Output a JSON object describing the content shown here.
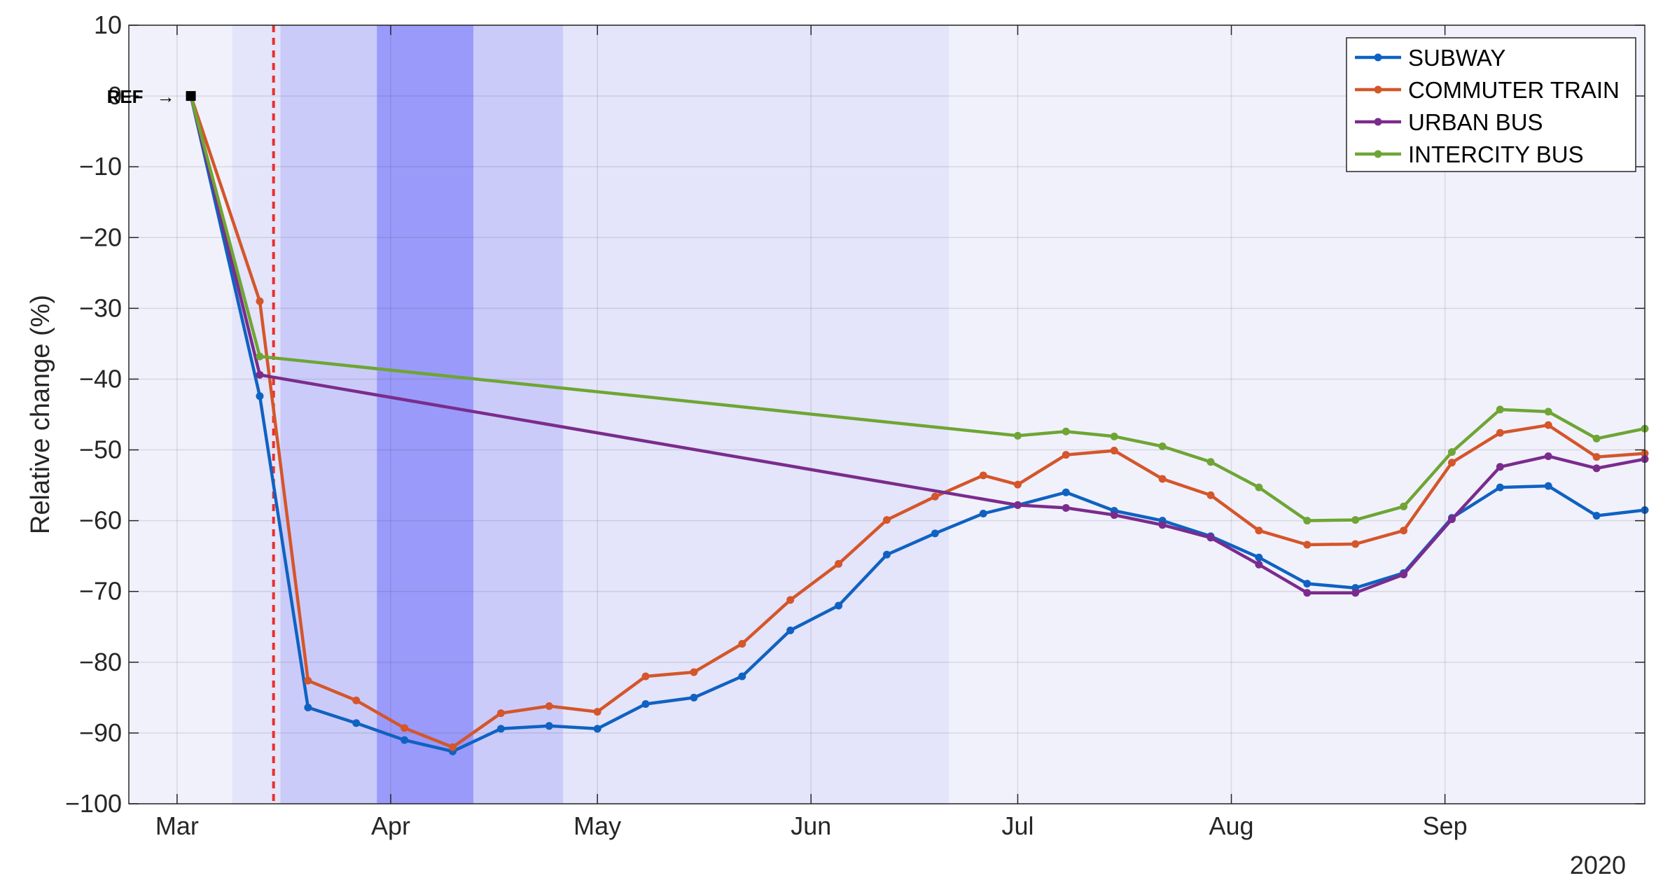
{
  "chart_data": {
    "type": "line",
    "xlabel": "",
    "ylabel": "Relative change (%)",
    "year_label": "2020",
    "ylim": [
      -100,
      10
    ],
    "xlim": [
      "2020-02-23",
      "2020-09-30"
    ],
    "yticks": [
      10,
      0,
      -10,
      -20,
      -30,
      -40,
      -50,
      -60,
      -70,
      -80,
      -90,
      -100
    ],
    "ytick_labels": [
      "10",
      "0",
      "−10",
      "−20",
      "−30",
      "−40",
      "−50",
      "−60",
      "−70",
      "−80",
      "−90",
      "−100"
    ],
    "xticks": [
      {
        "date": "2020-03-01",
        "label": "Mar"
      },
      {
        "date": "2020-04-01",
        "label": "Apr"
      },
      {
        "date": "2020-05-01",
        "label": "May"
      },
      {
        "date": "2020-06-01",
        "label": "Jun"
      },
      {
        "date": "2020-07-01",
        "label": "Jul"
      },
      {
        "date": "2020-08-01",
        "label": "Aug"
      },
      {
        "date": "2020-09-01",
        "label": "Sep"
      }
    ],
    "grid": true,
    "legend_position": "top-right",
    "reference": {
      "date": "2020-03-03",
      "value": 0,
      "label": "REF",
      "arrow": "→"
    },
    "event_line": {
      "date": "2020-03-15",
      "color": "#e8302e"
    },
    "shaded_periods": [
      {
        "start": "2020-03-09",
        "end": "2020-06-21",
        "color": "#e4e4fa"
      },
      {
        "start": "2020-03-16",
        "end": "2020-04-26",
        "color": "#cbcbfa"
      },
      {
        "start": "2020-03-30",
        "end": "2020-04-13",
        "color": "#9a9afa"
      }
    ],
    "series": [
      {
        "name": "SUBWAY",
        "color": "#0f62c1",
        "dates": [
          "2020-03-03",
          "2020-03-13",
          "2020-03-20",
          "2020-03-27",
          "2020-04-03",
          "2020-04-10",
          "2020-04-17",
          "2020-04-24",
          "2020-05-01",
          "2020-05-08",
          "2020-05-15",
          "2020-05-22",
          "2020-05-29",
          "2020-06-05",
          "2020-06-12",
          "2020-06-19",
          "2020-06-26",
          "2020-07-01",
          "2020-07-08",
          "2020-07-15",
          "2020-07-22",
          "2020-07-29",
          "2020-08-05",
          "2020-08-12",
          "2020-08-19",
          "2020-08-26",
          "2020-09-02",
          "2020-09-09",
          "2020-09-16",
          "2020-09-23",
          "2020-09-30"
        ],
        "values": [
          0,
          -42.4,
          -86.4,
          -88.6,
          -91,
          -92.6,
          -89.4,
          -89,
          -89.4,
          -85.9,
          -85,
          -82,
          -75.5,
          -72,
          -64.8,
          -61.8,
          -59,
          -57.8,
          -56,
          -58.6,
          -60,
          -62.2,
          -65.2,
          -68.9,
          -69.5,
          -67.4,
          -59.6,
          -55.3,
          -55.1,
          -59.3,
          -58.5
        ]
      },
      {
        "name": "COMMUTER TRAIN",
        "color": "#d4562a",
        "dates": [
          "2020-03-03",
          "2020-03-13",
          "2020-03-20",
          "2020-03-27",
          "2020-04-03",
          "2020-04-10",
          "2020-04-17",
          "2020-04-24",
          "2020-05-01",
          "2020-05-08",
          "2020-05-15",
          "2020-05-22",
          "2020-05-29",
          "2020-06-05",
          "2020-06-12",
          "2020-06-19",
          "2020-06-26",
          "2020-07-01",
          "2020-07-08",
          "2020-07-15",
          "2020-07-22",
          "2020-07-29",
          "2020-08-05",
          "2020-08-12",
          "2020-08-19",
          "2020-08-26",
          "2020-09-02",
          "2020-09-09",
          "2020-09-16",
          "2020-09-23",
          "2020-09-30"
        ],
        "values": [
          0,
          -29,
          -82.6,
          -85.4,
          -89.3,
          -92,
          -87.2,
          -86.2,
          -87,
          -82,
          -81.4,
          -77.4,
          -71.2,
          -66.1,
          -59.9,
          -56.6,
          -53.6,
          -54.9,
          -50.7,
          -50.1,
          -54.1,
          -56.4,
          -61.4,
          -63.4,
          -63.3,
          -61.4,
          -51.8,
          -47.6,
          -46.5,
          -51,
          -50.5
        ]
      },
      {
        "name": "URBAN BUS",
        "color": "#7a2c8c",
        "dates": [
          "2020-03-03",
          "2020-03-13",
          "2020-07-01",
          "2020-07-08",
          "2020-07-15",
          "2020-07-22",
          "2020-07-29",
          "2020-08-05",
          "2020-08-12",
          "2020-08-19",
          "2020-08-26",
          "2020-09-02",
          "2020-09-09",
          "2020-09-16",
          "2020-09-23",
          "2020-09-30"
        ],
        "values": [
          0,
          -39.4,
          -57.8,
          -58.2,
          -59.2,
          -60.6,
          -62.4,
          -66.2,
          -70.2,
          -70.2,
          -67.6,
          -59.8,
          -52.4,
          -50.9,
          -52.6,
          -51.3
        ]
      },
      {
        "name": "INTERCITY BUS",
        "color": "#6ea534",
        "dates": [
          "2020-03-03",
          "2020-03-13",
          "2020-07-01",
          "2020-07-08",
          "2020-07-15",
          "2020-07-22",
          "2020-07-29",
          "2020-08-05",
          "2020-08-12",
          "2020-08-19",
          "2020-08-26",
          "2020-09-02",
          "2020-09-09",
          "2020-09-16",
          "2020-09-23",
          "2020-09-30"
        ],
        "values": [
          0,
          -36.8,
          -48,
          -47.4,
          -48.1,
          -49.5,
          -51.7,
          -55.3,
          -60,
          -59.9,
          -58,
          -50.3,
          -44.3,
          -44.6,
          -48.4,
          -47
        ]
      }
    ]
  }
}
